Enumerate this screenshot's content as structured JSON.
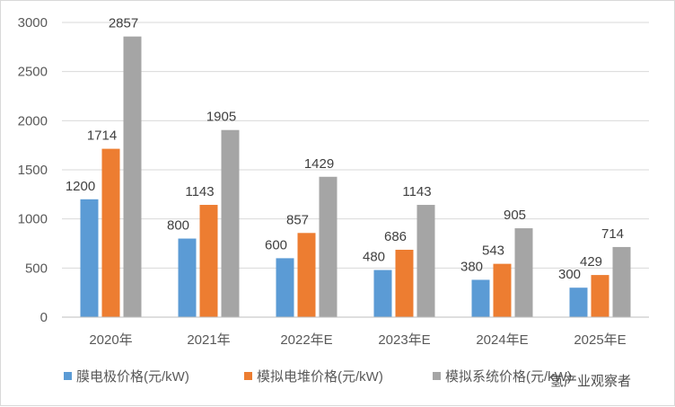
{
  "chart_data": {
    "type": "bar",
    "title": "",
    "xlabel": "",
    "ylabel": "",
    "categories": [
      "2020年",
      "2021年",
      "2022年E",
      "2023年E",
      "2024年E",
      "2025年E"
    ],
    "ylim": [
      0,
      3000
    ],
    "yticks": [
      0,
      500,
      1000,
      1500,
      2000,
      2500,
      3000
    ],
    "grid": true,
    "legend_position": "bottom",
    "series": [
      {
        "name": "膜电极价格(元/kW)",
        "color": "#5b9bd5",
        "values": [
          1200,
          800,
          600,
          480,
          380,
          300
        ]
      },
      {
        "name": "模拟电堆价格(元/kW)",
        "color": "#ed7d31",
        "values": [
          1714,
          1143,
          857,
          686,
          543,
          429
        ]
      },
      {
        "name": "模拟系统价格(元/kW)",
        "color": "#a5a5a5",
        "values": [
          2857,
          1905,
          1429,
          1143,
          905,
          714
        ]
      }
    ]
  },
  "watermark": {
    "text": "氢产业观察者"
  }
}
